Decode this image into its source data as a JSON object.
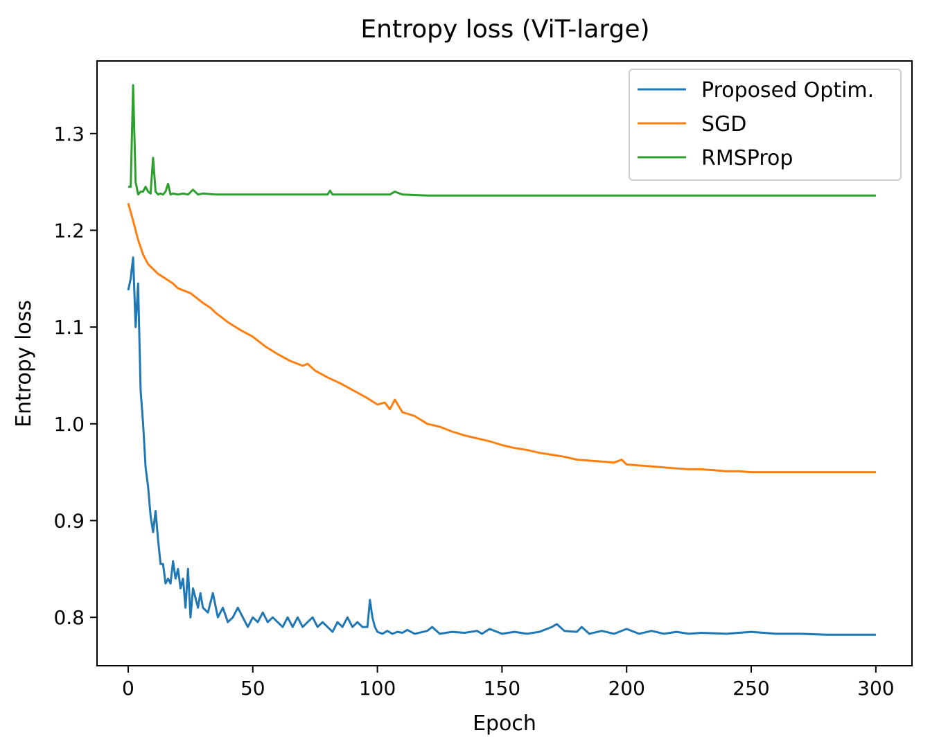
{
  "chart_data": {
    "type": "line",
    "title": "Entropy loss (ViT-large)",
    "xlabel": "Epoch",
    "ylabel": "Entropy loss",
    "xlim": [
      -12.5,
      314.5
    ],
    "ylim": [
      0.75,
      1.375
    ],
    "xticks": [
      0,
      50,
      100,
      150,
      200,
      250,
      300
    ],
    "yticks": [
      0.8,
      0.9,
      1.0,
      1.1,
      1.2,
      1.3
    ],
    "xtick_labels": [
      "0",
      "50",
      "100",
      "150",
      "200",
      "250",
      "300"
    ],
    "ytick_labels": [
      "0.8",
      "0.9",
      "1.0",
      "1.1",
      "1.2",
      "1.3"
    ],
    "grid": false,
    "legend_position": "top-right",
    "series": [
      {
        "name": "Proposed Optim.",
        "color": "#1f77b4",
        "x": [
          0,
          1,
          2,
          3,
          4,
          5,
          6,
          7,
          8,
          9,
          10,
          11,
          12,
          13,
          14,
          15,
          16,
          17,
          18,
          19,
          20,
          21,
          22,
          23,
          24,
          25,
          26,
          27,
          28,
          29,
          30,
          32,
          34,
          36,
          38,
          40,
          42,
          44,
          46,
          48,
          50,
          52,
          54,
          56,
          58,
          60,
          62,
          64,
          66,
          68,
          70,
          72,
          74,
          76,
          78,
          80,
          82,
          84,
          86,
          88,
          90,
          92,
          94,
          96,
          97,
          98,
          99,
          100,
          102,
          104,
          106,
          108,
          110,
          112,
          115,
          120,
          122,
          125,
          130,
          135,
          140,
          142,
          145,
          150,
          155,
          160,
          165,
          170,
          172,
          175,
          180,
          182,
          185,
          190,
          195,
          200,
          205,
          210,
          215,
          220,
          225,
          230,
          240,
          250,
          260,
          270,
          280,
          290,
          300
        ],
        "values": [
          1.138,
          1.15,
          1.172,
          1.1,
          1.145,
          1.035,
          1.0,
          0.955,
          0.935,
          0.905,
          0.888,
          0.91,
          0.88,
          0.855,
          0.855,
          0.835,
          0.84,
          0.835,
          0.858,
          0.84,
          0.85,
          0.83,
          0.84,
          0.81,
          0.85,
          0.8,
          0.83,
          0.82,
          0.81,
          0.825,
          0.81,
          0.805,
          0.825,
          0.8,
          0.81,
          0.795,
          0.8,
          0.81,
          0.8,
          0.79,
          0.8,
          0.795,
          0.805,
          0.795,
          0.8,
          0.795,
          0.79,
          0.8,
          0.79,
          0.8,
          0.79,
          0.795,
          0.8,
          0.79,
          0.795,
          0.79,
          0.785,
          0.795,
          0.79,
          0.8,
          0.79,
          0.795,
          0.79,
          0.79,
          0.818,
          0.8,
          0.79,
          0.785,
          0.783,
          0.786,
          0.783,
          0.785,
          0.784,
          0.787,
          0.783,
          0.786,
          0.79,
          0.783,
          0.785,
          0.784,
          0.786,
          0.783,
          0.788,
          0.783,
          0.785,
          0.783,
          0.785,
          0.79,
          0.793,
          0.786,
          0.785,
          0.79,
          0.783,
          0.786,
          0.783,
          0.788,
          0.783,
          0.786,
          0.783,
          0.785,
          0.783,
          0.784,
          0.783,
          0.785,
          0.783,
          0.783,
          0.782,
          0.782,
          0.782
        ]
      },
      {
        "name": "SGD",
        "color": "#ff7f0e",
        "x": [
          0,
          2,
          4,
          6,
          8,
          10,
          12,
          15,
          18,
          20,
          25,
          30,
          33,
          35,
          40,
          45,
          50,
          55,
          60,
          65,
          70,
          72,
          75,
          80,
          85,
          90,
          95,
          100,
          103,
          105,
          107,
          110,
          115,
          120,
          125,
          130,
          135,
          140,
          145,
          150,
          155,
          160,
          165,
          170,
          175,
          180,
          185,
          190,
          195,
          198,
          200,
          205,
          210,
          215,
          220,
          225,
          230,
          235,
          240,
          245,
          250,
          255,
          260,
          265,
          270,
          275,
          280,
          290,
          300
        ],
        "values": [
          1.228,
          1.21,
          1.19,
          1.175,
          1.165,
          1.16,
          1.155,
          1.15,
          1.145,
          1.14,
          1.135,
          1.125,
          1.12,
          1.115,
          1.105,
          1.097,
          1.09,
          1.08,
          1.072,
          1.065,
          1.06,
          1.062,
          1.055,
          1.048,
          1.042,
          1.035,
          1.028,
          1.02,
          1.022,
          1.015,
          1.025,
          1.012,
          1.008,
          1.0,
          0.997,
          0.992,
          0.988,
          0.985,
          0.982,
          0.978,
          0.975,
          0.973,
          0.97,
          0.968,
          0.966,
          0.963,
          0.962,
          0.961,
          0.96,
          0.963,
          0.958,
          0.957,
          0.956,
          0.955,
          0.954,
          0.953,
          0.953,
          0.952,
          0.951,
          0.951,
          0.95,
          0.95,
          0.95,
          0.95,
          0.95,
          0.95,
          0.95,
          0.95,
          0.95
        ]
      },
      {
        "name": "RMSProp",
        "color": "#2ca02c",
        "x": [
          0,
          1,
          2,
          3,
          4,
          5,
          6,
          7,
          8,
          9,
          10,
          11,
          12,
          13,
          14,
          15,
          16,
          17,
          18,
          20,
          22,
          24,
          26,
          28,
          30,
          35,
          40,
          50,
          60,
          70,
          80,
          81,
          82,
          90,
          100,
          105,
          107,
          110,
          120,
          150,
          200,
          250,
          300
        ],
        "values": [
          1.245,
          1.245,
          1.35,
          1.25,
          1.237,
          1.24,
          1.24,
          1.245,
          1.24,
          1.238,
          1.275,
          1.24,
          1.237,
          1.238,
          1.237,
          1.24,
          1.248,
          1.237,
          1.238,
          1.237,
          1.238,
          1.237,
          1.242,
          1.237,
          1.238,
          1.237,
          1.237,
          1.237,
          1.237,
          1.237,
          1.237,
          1.241,
          1.237,
          1.237,
          1.237,
          1.237,
          1.24,
          1.237,
          1.236,
          1.236,
          1.236,
          1.236,
          1.236
        ]
      }
    ]
  }
}
